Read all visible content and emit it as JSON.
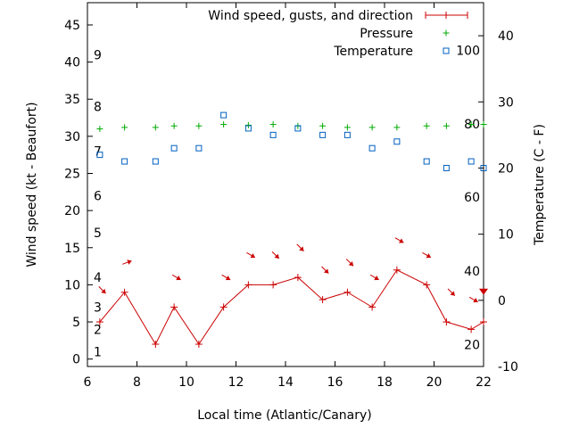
{
  "chart_data": {
    "type": "line",
    "xlabel": "Local time (Atlantic/Canary)",
    "ylabel": "Wind speed (kt - Beaufort)",
    "y2label": "Temperature (C - F)",
    "xlim": [
      6,
      22
    ],
    "ylim": [
      -1,
      48
    ],
    "y2lim": [
      -10,
      45
    ],
    "x_ticks": [
      6,
      8,
      10,
      12,
      14,
      16,
      18,
      20,
      22
    ],
    "y_ticks": [
      0,
      5,
      10,
      15,
      20,
      25,
      30,
      35,
      40,
      45
    ],
    "y2_ticks": [
      -10,
      0,
      10,
      20,
      30,
      40
    ],
    "beaufort_labels": [
      {
        "label": "1",
        "kt": 1
      },
      {
        "label": "2",
        "kt": 4
      },
      {
        "label": "3",
        "kt": 7
      },
      {
        "label": "4",
        "kt": 11
      },
      {
        "label": "5",
        "kt": 17
      },
      {
        "label": "6",
        "kt": 22
      },
      {
        "label": "7",
        "kt": 28
      },
      {
        "label": "8",
        "kt": 34
      },
      {
        "label": "9",
        "kt": 41
      }
    ],
    "fahrenheit_labels": [
      {
        "label": "20",
        "celsius": -6.7
      },
      {
        "label": "40",
        "celsius": 4.4
      },
      {
        "label": "60",
        "celsius": 15.6
      },
      {
        "label": "80",
        "celsius": 26.7
      },
      {
        "label": "100",
        "celsius": 37.8
      }
    ],
    "legend_position": "top-right",
    "series": [
      {
        "name": "Wind speed, gusts, and direction",
        "color": "#cc0000",
        "marker": "plus-line",
        "axis": "left",
        "points": [
          {
            "x": 6.5,
            "y": 5
          },
          {
            "x": 7.5,
            "y": 9
          },
          {
            "x": 8.75,
            "y": 2
          },
          {
            "x": 9.5,
            "y": 7
          },
          {
            "x": 10.5,
            "y": 2
          },
          {
            "x": 11.5,
            "y": 7
          },
          {
            "x": 12.5,
            "y": 10
          },
          {
            "x": 13.5,
            "y": 10
          },
          {
            "x": 14.5,
            "y": 11
          },
          {
            "x": 15.5,
            "y": 8
          },
          {
            "x": 16.5,
            "y": 9
          },
          {
            "x": 17.5,
            "y": 7
          },
          {
            "x": 18.5,
            "y": 12
          },
          {
            "x": 19.7,
            "y": 10
          },
          {
            "x": 20.5,
            "y": 5
          },
          {
            "x": 21.5,
            "y": 4
          },
          {
            "x": 22,
            "y": 5
          }
        ]
      },
      {
        "name": "Pressure",
        "color": "#00aa00",
        "marker": "plus",
        "axis": "left",
        "points": [
          {
            "x": 6.5,
            "y": 31
          },
          {
            "x": 7.5,
            "y": 31.2
          },
          {
            "x": 8.75,
            "y": 31.2
          },
          {
            "x": 9.5,
            "y": 31.4
          },
          {
            "x": 10.5,
            "y": 31.4
          },
          {
            "x": 11.5,
            "y": 31.6
          },
          {
            "x": 12.5,
            "y": 31.5
          },
          {
            "x": 13.5,
            "y": 31.6
          },
          {
            "x": 14.5,
            "y": 31.4
          },
          {
            "x": 15.5,
            "y": 31.4
          },
          {
            "x": 16.5,
            "y": 31.2
          },
          {
            "x": 17.5,
            "y": 31.2
          },
          {
            "x": 18.5,
            "y": 31.2
          },
          {
            "x": 19.7,
            "y": 31.4
          },
          {
            "x": 20.5,
            "y": 31.4
          },
          {
            "x": 21.5,
            "y": 31.6
          },
          {
            "x": 22,
            "y": 31.6
          }
        ]
      },
      {
        "name": "Temperature",
        "color": "#0060c0",
        "marker": "square",
        "axis": "right",
        "points": [
          {
            "x": 6.5,
            "y": 22
          },
          {
            "x": 7.5,
            "y": 21
          },
          {
            "x": 8.75,
            "y": 21
          },
          {
            "x": 9.5,
            "y": 23
          },
          {
            "x": 10.5,
            "y": 23
          },
          {
            "x": 11.5,
            "y": 28
          },
          {
            "x": 12.5,
            "y": 26
          },
          {
            "x": 13.5,
            "y": 25
          },
          {
            "x": 14.5,
            "y": 26
          },
          {
            "x": 15.5,
            "y": 25
          },
          {
            "x": 16.5,
            "y": 25
          },
          {
            "x": 17.5,
            "y": 23
          },
          {
            "x": 18.5,
            "y": 24
          },
          {
            "x": 19.7,
            "y": 21
          },
          {
            "x": 20.5,
            "y": 20
          },
          {
            "x": 21.5,
            "y": 21
          },
          {
            "x": 22,
            "y": 20
          }
        ]
      }
    ],
    "gust_arrows": [
      {
        "x": 6.6,
        "gust_kt": 9.3,
        "direction_deg": 315
      },
      {
        "x": 7.6,
        "gust_kt": 13,
        "direction_deg": 250
      },
      {
        "x": 9.6,
        "gust_kt": 11,
        "direction_deg": 300
      },
      {
        "x": 11.6,
        "gust_kt": 11,
        "direction_deg": 300
      },
      {
        "x": 12.6,
        "gust_kt": 14,
        "direction_deg": 300
      },
      {
        "x": 13.6,
        "gust_kt": 14,
        "direction_deg": 315
      },
      {
        "x": 14.6,
        "gust_kt": 15,
        "direction_deg": 315
      },
      {
        "x": 15.6,
        "gust_kt": 12,
        "direction_deg": 315
      },
      {
        "x": 16.6,
        "gust_kt": 13,
        "direction_deg": 315
      },
      {
        "x": 17.6,
        "gust_kt": 11,
        "direction_deg": 300
      },
      {
        "x": 18.6,
        "gust_kt": 16,
        "direction_deg": 300
      },
      {
        "x": 19.7,
        "gust_kt": 14,
        "direction_deg": 300
      },
      {
        "x": 20.7,
        "gust_kt": 9,
        "direction_deg": 315
      },
      {
        "x": 21.6,
        "gust_kt": 8,
        "direction_deg": 300
      },
      {
        "x": 22,
        "gust_kt": 9,
        "direction_deg": 0
      }
    ]
  }
}
